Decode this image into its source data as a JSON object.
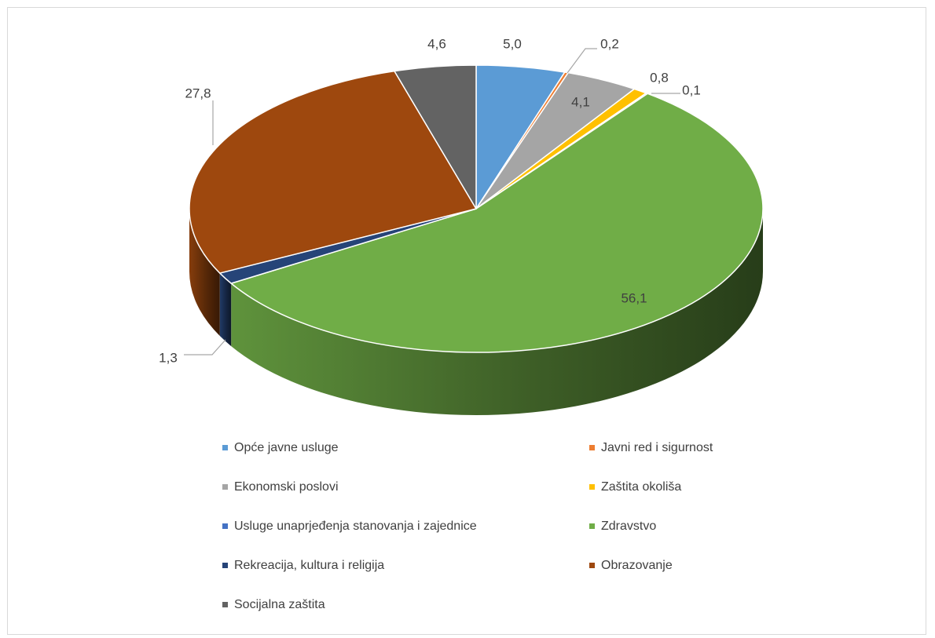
{
  "chart_data": {
    "type": "pie",
    "style": "3d",
    "title": "",
    "labels": [
      "Opće javne usluge",
      "Javni red i sigurnost",
      "Ekonomski poslovi",
      "Zaštita okoliša",
      "Usluge unaprjeđenja stanovanja i zajednice",
      "Zdravstvo",
      "Rekreacija, kultura i religija",
      "Obrazovanje",
      "Socijalna zaštita"
    ],
    "values": [
      5.0,
      0.2,
      4.1,
      0.8,
      0.1,
      56.1,
      1.3,
      27.8,
      4.6
    ],
    "data_labels": [
      "5,0",
      "0,2",
      "4,1",
      "0,8",
      "0,1",
      "56,1",
      "1,3",
      "27,8",
      "4,6"
    ],
    "colors": [
      "#5b9bd5",
      "#ed7d31",
      "#a5a5a5",
      "#ffc000",
      "#4472c4",
      "#70ad47",
      "#264478",
      "#9e480e",
      "#636363"
    ],
    "legend_position": "bottom"
  }
}
